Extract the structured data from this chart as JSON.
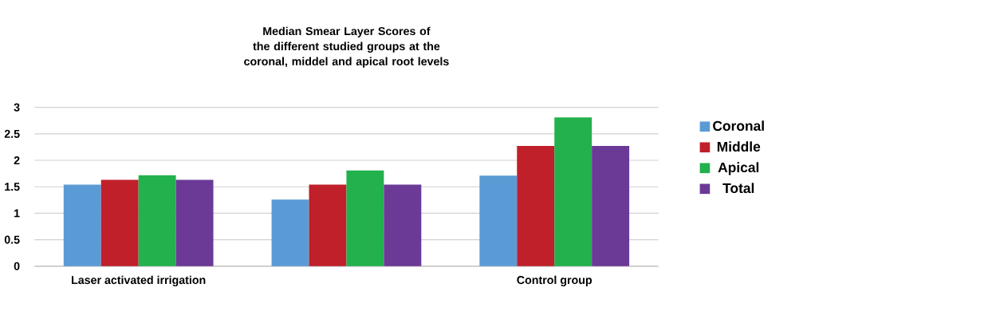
{
  "chart_data": {
    "type": "bar",
    "title": "Median Smear Layer Scores of the different studied groups at the coronal, middel and apical root levels",
    "categories": [
      "Laser activated irrigation",
      null,
      "Control group"
    ],
    "series": [
      {
        "name": "Coronal",
        "color": "#5b9bd5",
        "values": [
          1.54,
          1.26,
          1.71
        ]
      },
      {
        "name": "Middle",
        "color": "#c0202a",
        "values": [
          1.63,
          1.54,
          2.27
        ]
      },
      {
        "name": "Apical",
        "color": "#22b14c",
        "values": [
          1.72,
          1.81,
          2.81
        ]
      },
      {
        "name": "Total",
        "color": "#6a3a96",
        "values": [
          1.63,
          1.54,
          2.27
        ]
      }
    ],
    "ylim": [
      0,
      3
    ],
    "yticks": [
      0,
      0.5,
      1,
      1.5,
      2,
      2.5,
      3
    ],
    "grid": "y",
    "legend": "right"
  }
}
